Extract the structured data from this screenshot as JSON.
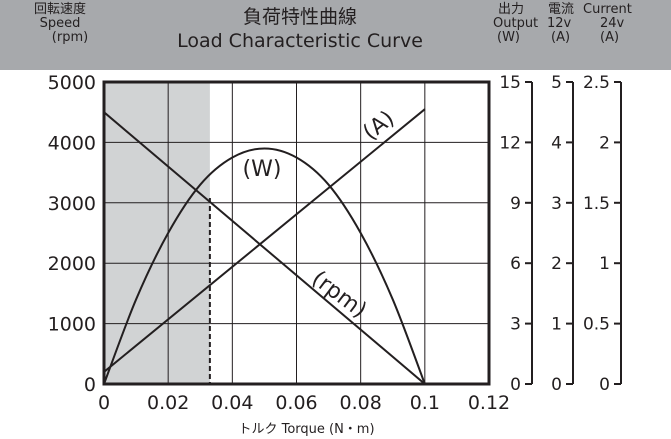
{
  "header": {
    "speed_jp": "回転速度",
    "speed_en": "Speed",
    "speed_unit": "(rpm)",
    "title_jp": "負荷特性曲線",
    "title_en": "Load Characteristic Curve",
    "output_jp": "出力",
    "output_en": "Output",
    "output_unit": "(W)",
    "current_jp": "電流",
    "current_en": "Current",
    "v12": "12v",
    "v12_unit": "(A)",
    "v24": "24v",
    "v24_unit": "(A)"
  },
  "chart_data": {
    "type": "line",
    "title": "Load Characteristic Curve",
    "xlabel": "トルク Torque (N・m)",
    "ylabel": "Speed (rpm)",
    "xlim": [
      0,
      0.12
    ],
    "ylim": [
      0,
      5000
    ],
    "x_ticks": [
      "0",
      "0.02",
      "0.04",
      "0.06",
      "0.08",
      "0.1",
      "0.12"
    ],
    "y_ticks": [
      "0",
      "1000",
      "2000",
      "3000",
      "4000",
      "5000"
    ],
    "grid": true,
    "secondary_axes": [
      {
        "name": "Output (W)",
        "ticks": [
          "0",
          "3",
          "6",
          "9",
          "12",
          "15"
        ],
        "range": [
          0,
          15
        ]
      },
      {
        "name": "Current 12v (A)",
        "ticks": [
          "0",
          "1",
          "2",
          "3",
          "4",
          "5"
        ],
        "range": [
          0,
          5
        ]
      },
      {
        "name": "Current 24v (A)",
        "ticks": [
          "0",
          "0.5",
          "1",
          "1.5",
          "2",
          "2.5"
        ],
        "range": [
          0,
          2.5
        ]
      }
    ],
    "series": [
      {
        "name": "(rpm)",
        "x": [
          0,
          0.1
        ],
        "y": [
          4500,
          0
        ]
      },
      {
        "name": "(A)",
        "x": [
          0,
          0.1
        ],
        "y": [
          200,
          4550
        ]
      },
      {
        "name": "(W)",
        "x": [
          0,
          0.01,
          0.02,
          0.03,
          0.04,
          0.05,
          0.06,
          0.07,
          0.08,
          0.09,
          0.1
        ],
        "y": [
          0,
          1400,
          2500,
          3300,
          3750,
          3900,
          3750,
          3300,
          2500,
          1400,
          0
        ]
      }
    ],
    "shaded_region": {
      "x": [
        0,
        0.033
      ]
    },
    "rated_point": {
      "x": 0.033,
      "y": 3080
    }
  }
}
